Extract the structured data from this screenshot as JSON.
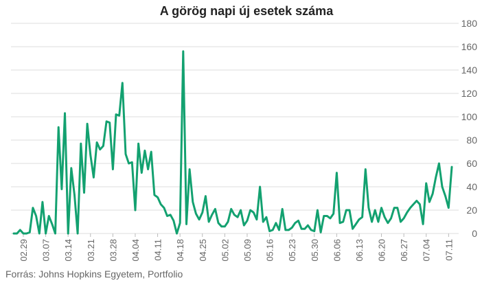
{
  "chart_data": {
    "type": "line",
    "title": "A görög napi új esetek száma",
    "xlabel": "",
    "ylabel": "",
    "ylim": [
      0,
      180
    ],
    "yticks": [
      0,
      20,
      40,
      60,
      80,
      100,
      120,
      140,
      160,
      180
    ],
    "y_axis_side": "right",
    "grid": "horizontal",
    "x_tick_labels": [
      "02.29",
      "03.07",
      "03.14",
      "03.21",
      "03.28",
      "04.04",
      "04.11",
      "04.18",
      "04.25",
      "05.02",
      "05.09",
      "05.16",
      "05.23",
      "05.30",
      "06.06",
      "06.13",
      "06.20",
      "06.27",
      "07.04",
      "07.11"
    ],
    "x_tick_interval_days": 7,
    "start_date": "02.26",
    "series": [
      {
        "color": "#13a170",
        "values": [
          0,
          0,
          3,
          0,
          0,
          1,
          22,
          15,
          0,
          27,
          0,
          15,
          8,
          0,
          91,
          38,
          103,
          0,
          56,
          33,
          0,
          77,
          35,
          94,
          67,
          48,
          78,
          72,
          75,
          96,
          95,
          55,
          102,
          101,
          129,
          68,
          60,
          61,
          20,
          77,
          52,
          71,
          55,
          70,
          33,
          31,
          25,
          22,
          15,
          16,
          11,
          0,
          9,
          156,
          8,
          55,
          27,
          17,
          12,
          18,
          32,
          10,
          16,
          21,
          9,
          6,
          6,
          10,
          21,
          16,
          14,
          20,
          7,
          11,
          20,
          18,
          12,
          40,
          10,
          14,
          2,
          3,
          9,
          3,
          21,
          3,
          3,
          5,
          9,
          11,
          4,
          4,
          7,
          3,
          2,
          20,
          1,
          15,
          15,
          13,
          17,
          52,
          9,
          10,
          20,
          20,
          4,
          8,
          12,
          14,
          55,
          22,
          10,
          20,
          10,
          22,
          14,
          9,
          13,
          22,
          22,
          10,
          13,
          18,
          22,
          25,
          28,
          25,
          8,
          43,
          27,
          34,
          48,
          60,
          40,
          32,
          22,
          57
        ]
      }
    ],
    "source": "Forrás: Johns Hopkins Egyetem, Portfolio"
  }
}
